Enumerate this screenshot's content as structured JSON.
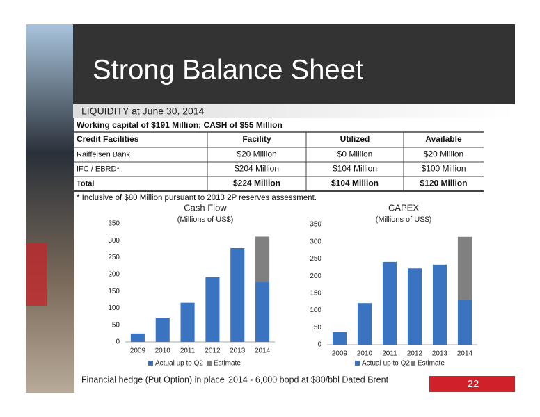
{
  "header": {
    "title": "Strong Balance Sheet",
    "subtitle": "LIQUIDITY at June 30, 2014"
  },
  "table": {
    "caption": "Working capital of $191 Million; CASH of $55 Million",
    "columns": [
      "Credit Facilities",
      "Facility",
      "Utilized",
      "Available"
    ],
    "rows": [
      [
        "Raiffeisen Bank",
        "$20 Million",
        "$0 Million",
        "$20 Million"
      ],
      [
        "IFC / EBRD*",
        "$204 Million",
        "$104 Million",
        "$100 Million"
      ],
      [
        "Total",
        "$224 Million",
        "$104 Million",
        "$120 Million"
      ]
    ]
  },
  "footnote": "* Inclusive of $80 Million pursuant to 2013 2P reserves assessment.",
  "chart_data": [
    {
      "type": "bar",
      "title": "Cash Flow",
      "subtitle": "(Millions of US$)",
      "categories": [
        "2009",
        "2010",
        "2011",
        "2012",
        "2013",
        "2014"
      ],
      "series": [
        {
          "name": "Actual up to Q2",
          "color": "#3a73c0",
          "values": [
            25,
            72,
            116,
            192,
            278,
            177
          ]
        },
        {
          "name": "Estimate",
          "color": "#808080",
          "values": [
            null,
            null,
            null,
            null,
            null,
            135
          ]
        }
      ],
      "ylim": [
        0,
        350
      ],
      "yticks": [
        0,
        50,
        100,
        150,
        200,
        250,
        300,
        350
      ],
      "grid": false,
      "stacked": true
    },
    {
      "type": "bar",
      "title": "CAPEX",
      "subtitle": "(Millions of US$)",
      "categories": [
        "2009",
        "2010",
        "2011",
        "2012",
        "2013",
        "2014"
      ],
      "series": [
        {
          "name": "Actual up to Q2",
          "color": "#3a73c0",
          "values": [
            37,
            121,
            241,
            222,
            233,
            131
          ]
        },
        {
          "name": "Estimate",
          "color": "#808080",
          "values": [
            null,
            null,
            null,
            null,
            null,
            183
          ]
        }
      ],
      "ylim": [
        0,
        350
      ],
      "yticks": [
        0,
        50,
        100,
        150,
        200,
        250,
        300,
        350
      ],
      "grid": false,
      "stacked": true
    }
  ],
  "footer": {
    "hedge": "Financial hedge (Put Option) in place",
    "detail": "2014 - 6,000 bopd at $80/bbl Dated Brent",
    "page": "22"
  }
}
